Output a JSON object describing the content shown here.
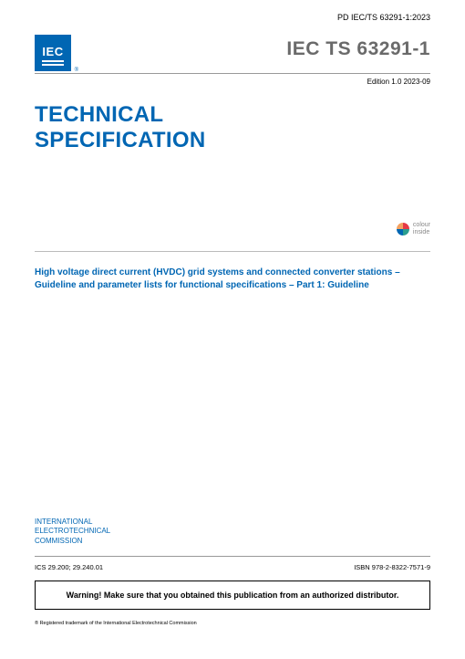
{
  "pd_header": "PD IEC/TS 63291-1:2023",
  "logo": {
    "text": "IEC",
    "reg": "®"
  },
  "doc_number": "IEC TS 63291-1",
  "edition": "Edition 1.0   2023-09",
  "main_title_1": "TECHNICAL",
  "main_title_2": "SPECIFICATION",
  "colour_inside_1": "colour",
  "colour_inside_2": "inside",
  "subtitle": "High voltage direct current (HVDC) grid systems and connected converter stations – Guideline and parameter lists for functional specifications – Part 1: Guideline",
  "org_1": "INTERNATIONAL",
  "org_2": "ELECTROTECHNICAL",
  "org_3": "COMMISSION",
  "ics": "ICS 29.200; 29.240.01",
  "isbn": "ISBN 978-2-8322-7571-9",
  "warning": "Warning! Make sure that you obtained this publication from an authorized distributor.",
  "trademark": "® Registered trademark of the International Electrotechnical Commission",
  "colors": {
    "brand_blue": "#0066b3",
    "doc_number_gray": "#6a6a6a",
    "rule_gray": "#999999"
  }
}
